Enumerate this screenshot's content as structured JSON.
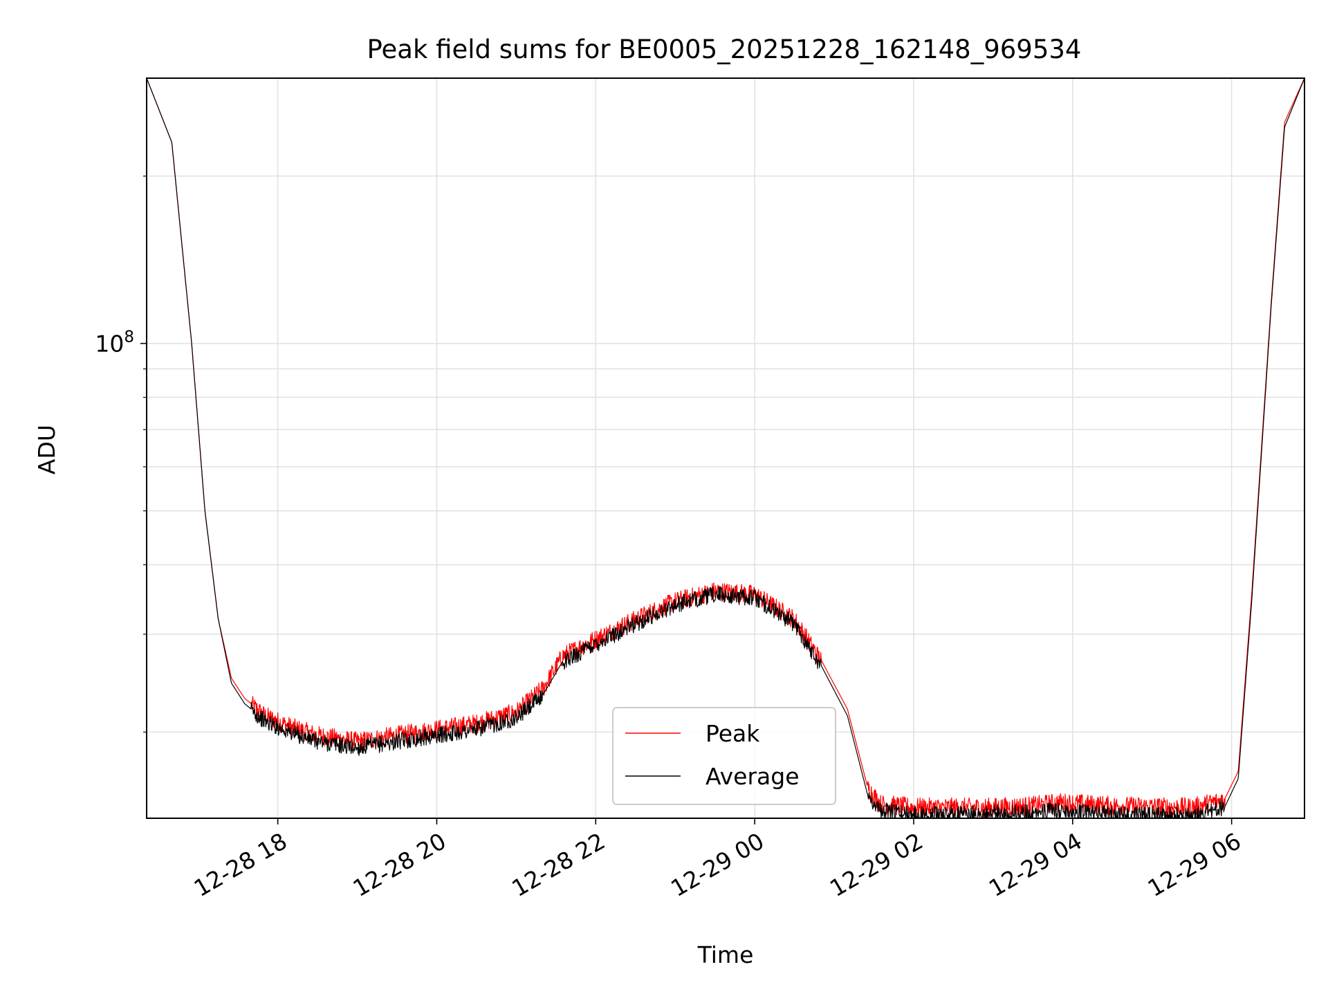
{
  "chart_data": {
    "type": "line",
    "title": "Peak field sums for BE0005_20251228_162148_969534",
    "xlabel": "Time",
    "ylabel": "ADU",
    "y_scale": "log",
    "y_tick_labels": [
      {
        "value": 100000000,
        "label": "10",
        "exponent": "8"
      }
    ],
    "y_minor_ticks": [
      20000000,
      30000000,
      40000000,
      50000000,
      60000000,
      70000000,
      80000000,
      90000000,
      200000000
    ],
    "ylim": [
      14000000,
      300000000
    ],
    "xlim": [
      "2025-12-28 16:21",
      "2025-12-29 06:55"
    ],
    "x_ticks": [
      {
        "time": "2025-12-28 18:00",
        "label": "12-28 18"
      },
      {
        "time": "2025-12-28 20:00",
        "label": "12-28 20"
      },
      {
        "time": "2025-12-28 22:00",
        "label": "12-28 22"
      },
      {
        "time": "2025-12-29 00:00",
        "label": "12-29 00"
      },
      {
        "time": "2025-12-29 02:00",
        "label": "12-29 02"
      },
      {
        "time": "2025-12-29 04:00",
        "label": "12-29 04"
      },
      {
        "time": "2025-12-29 06:00",
        "label": "12-29 06"
      }
    ],
    "grid": true,
    "legend_position": "bottom-center",
    "series": [
      {
        "name": "Peak",
        "color": "#ff0000",
        "noise_amplitude": 0.035,
        "x": [
          "2025-12-28 16:21",
          "2025-12-28 16:40",
          "2025-12-28 16:55",
          "2025-12-28 17:05",
          "2025-12-28 17:15",
          "2025-12-28 17:25",
          "2025-12-28 17:35",
          "2025-12-28 17:50",
          "2025-12-28 18:10",
          "2025-12-28 18:30",
          "2025-12-28 19:00",
          "2025-12-28 19:30",
          "2025-12-28 20:00",
          "2025-12-28 20:30",
          "2025-12-28 21:00",
          "2025-12-28 21:20",
          "2025-12-28 21:35",
          "2025-12-28 22:00",
          "2025-12-28 22:30",
          "2025-12-28 23:00",
          "2025-12-28 23:30",
          "2025-12-29 00:00",
          "2025-12-29 00:30",
          "2025-12-29 00:50",
          "2025-12-29 01:10",
          "2025-12-29 01:25",
          "2025-12-29 01:35",
          "2025-12-29 02:00",
          "2025-12-29 03:00",
          "2025-12-29 03:30",
          "2025-12-29 03:50",
          "2025-12-29 04:30",
          "2025-12-29 05:30",
          "2025-12-29 05:55",
          "2025-12-29 06:05",
          "2025-12-29 06:15",
          "2025-12-29 06:30",
          "2025-12-29 06:40",
          "2025-12-29 06:55"
        ],
        "y": [
          300000000,
          230000000,
          100000000,
          50000000,
          32000000,
          25000000,
          23000000,
          21500000,
          20500000,
          19800000,
          19300000,
          19800000,
          20300000,
          20800000,
          21800000,
          24000000,
          27500000,
          29500000,
          32000000,
          34500000,
          36000000,
          35500000,
          32000000,
          27000000,
          22000000,
          16000000,
          14900000,
          14700000,
          14700000,
          14800000,
          15000000,
          14800000,
          14700000,
          15200000,
          17000000,
          35000000,
          120000000,
          250000000,
          300000000
        ]
      },
      {
        "name": "Average",
        "color": "#000000",
        "noise_amplitude": 0.03,
        "x": [
          "2025-12-28 16:21",
          "2025-12-28 16:40",
          "2025-12-28 16:55",
          "2025-12-28 17:05",
          "2025-12-28 17:15",
          "2025-12-28 17:25",
          "2025-12-28 17:35",
          "2025-12-28 17:50",
          "2025-12-28 18:10",
          "2025-12-28 18:30",
          "2025-12-28 19:00",
          "2025-12-28 19:30",
          "2025-12-28 20:00",
          "2025-12-28 20:30",
          "2025-12-28 21:00",
          "2025-12-28 21:20",
          "2025-12-28 21:35",
          "2025-12-28 22:00",
          "2025-12-28 22:30",
          "2025-12-28 23:00",
          "2025-12-28 23:30",
          "2025-12-29 00:00",
          "2025-12-29 00:30",
          "2025-12-29 00:50",
          "2025-12-29 01:10",
          "2025-12-29 01:25",
          "2025-12-29 01:35",
          "2025-12-29 02:00",
          "2025-12-29 03:00",
          "2025-12-29 03:30",
          "2025-12-29 03:50",
          "2025-12-29 04:30",
          "2025-12-29 05:30",
          "2025-12-29 05:55",
          "2025-12-29 06:05",
          "2025-12-29 06:15",
          "2025-12-29 06:30",
          "2025-12-29 06:40",
          "2025-12-29 06:55"
        ],
        "y": [
          300000000,
          230000000,
          100000000,
          50000000,
          32000000,
          24500000,
          22500000,
          21000000,
          20000000,
          19300000,
          18800000,
          19300000,
          19800000,
          20300000,
          21300000,
          23300000,
          26800000,
          28900000,
          31400000,
          34000000,
          35500000,
          35000000,
          31400000,
          26400000,
          21400000,
          15500000,
          14500000,
          14300000,
          14300000,
          14400000,
          14500000,
          14300000,
          14200000,
          14700000,
          16500000,
          34000000,
          118000000,
          245000000,
          300000000
        ]
      }
    ]
  }
}
